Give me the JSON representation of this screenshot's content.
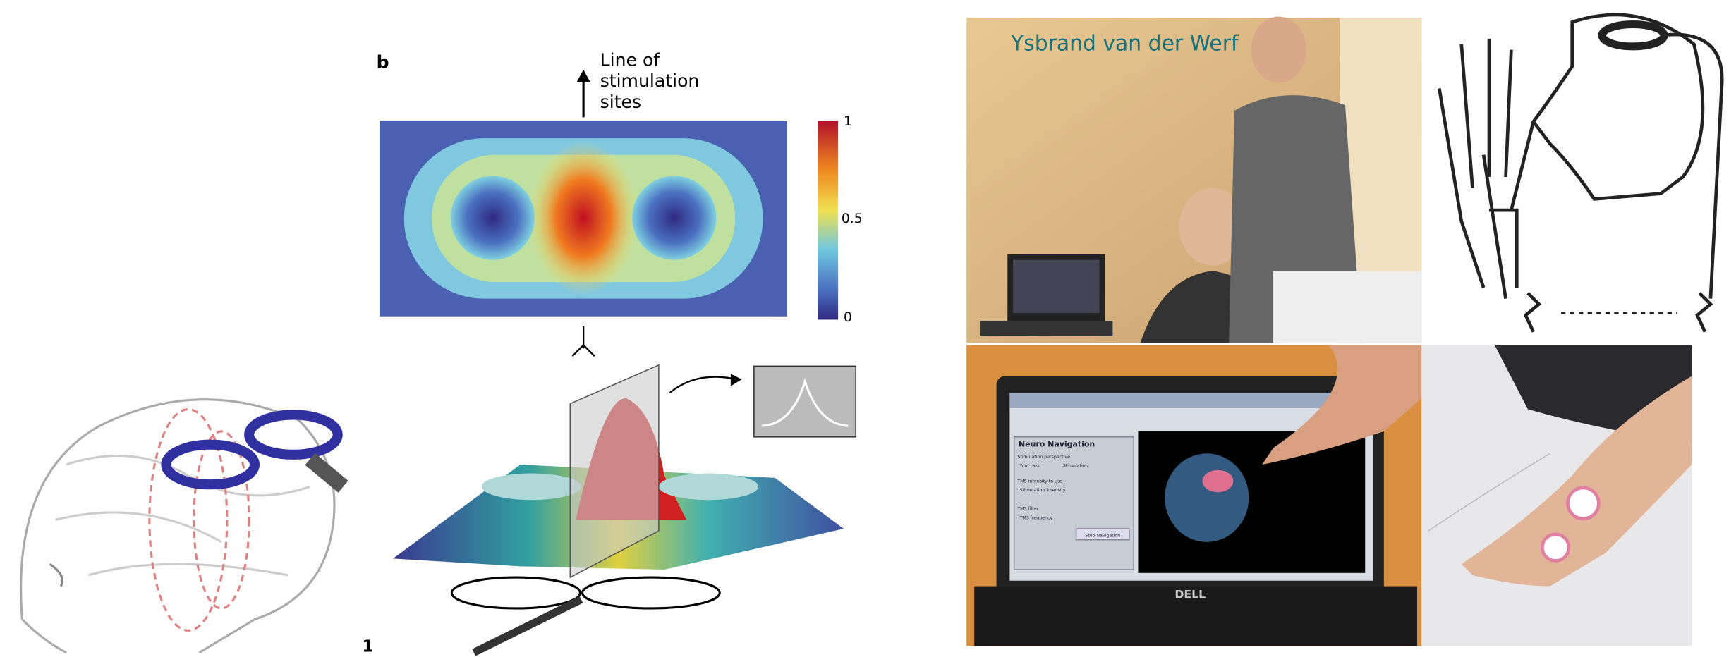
{
  "panel_b": {
    "label": "b",
    "annotation": [
      "Line of",
      "stimulation",
      "sites"
    ],
    "colorbar_ticks": [
      "1",
      "0.5",
      "0"
    ]
  },
  "panel_number": "1",
  "photo_caption": "Ysbrand van der Werf",
  "laptop": {
    "brand": "DELL",
    "app_title": "Neuro Navigation",
    "fields": [
      "Stimulation perspective",
      "Your task",
      "Stimulation",
      "TMS intensity to use",
      "Stimulation intensity",
      "TMS filter",
      "TMS frequency"
    ],
    "button": "Stop Navigation"
  }
}
